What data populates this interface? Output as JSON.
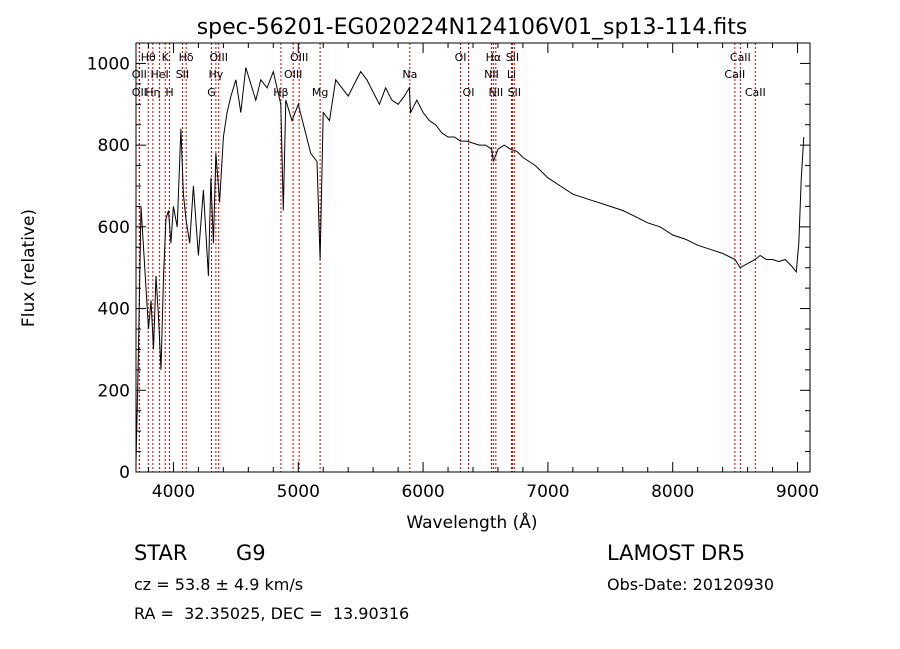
{
  "chart_data": {
    "type": "line",
    "title": "spec-56201-EG020224N124106V01_sp13-114.fits",
    "xlabel": "Wavelength (Å)",
    "ylabel": "Flux (relative)",
    "xlim": [
      3700,
      9100
    ],
    "ylim": [
      0,
      1050
    ],
    "x_ticks": [
      4000,
      5000,
      6000,
      7000,
      8000,
      9000
    ],
    "y_ticks": [
      0,
      200,
      400,
      600,
      800,
      1000
    ],
    "series": [
      {
        "x": [
          3700,
          3720,
          3740,
          3760,
          3780,
          3800,
          3820,
          3840,
          3860,
          3880,
          3900,
          3920,
          3940,
          3960,
          3980,
          4000,
          4030,
          4060,
          4080,
          4100,
          4130,
          4160,
          4200,
          4240,
          4280,
          4300,
          4320,
          4340,
          4370,
          4400,
          4430,
          4460,
          4500,
          4540,
          4580,
          4620,
          4660,
          4700,
          4750,
          4800,
          4860,
          4880,
          4900,
          4950,
          5000,
          5050,
          5100,
          5150,
          5175,
          5200,
          5250,
          5300,
          5350,
          5400,
          5450,
          5500,
          5550,
          5600,
          5650,
          5700,
          5750,
          5800,
          5850,
          5890,
          5900,
          5950,
          6000,
          6050,
          6100,
          6150,
          6200,
          6250,
          6300,
          6350,
          6400,
          6450,
          6500,
          6550,
          6563,
          6600,
          6650,
          6700,
          6750,
          6800,
          6900,
          7000,
          7100,
          7200,
          7300,
          7400,
          7500,
          7600,
          7700,
          7800,
          7900,
          8000,
          8100,
          8200,
          8300,
          8400,
          8500,
          8540,
          8600,
          8660,
          8700,
          8750,
          8800,
          8850,
          8900,
          8950,
          8990,
          9010,
          9030,
          9050
        ],
        "y": [
          20,
          300,
          650,
          550,
          450,
          350,
          420,
          300,
          480,
          380,
          250,
          480,
          620,
          640,
          560,
          650,
          600,
          840,
          680,
          620,
          560,
          700,
          530,
          690,
          480,
          720,
          560,
          780,
          660,
          820,
          880,
          920,
          960,
          880,
          990,
          950,
          910,
          960,
          940,
          980,
          900,
          640,
          910,
          860,
          900,
          840,
          780,
          760,
          520,
          880,
          860,
          960,
          940,
          920,
          950,
          980,
          960,
          930,
          900,
          940,
          910,
          900,
          920,
          940,
          880,
          910,
          880,
          860,
          850,
          830,
          820,
          820,
          810,
          810,
          805,
          800,
          800,
          790,
          760,
          790,
          800,
          790,
          785,
          770,
          750,
          720,
          700,
          680,
          670,
          660,
          650,
          640,
          625,
          610,
          600,
          580,
          570,
          555,
          545,
          535,
          520,
          500,
          510,
          520,
          530,
          520,
          520,
          515,
          520,
          505,
          490,
          560,
          720,
          820
        ]
      }
    ],
    "lines": [
      {
        "label": "Hθ",
        "x": 3798,
        "row": 0
      },
      {
        "label": "OII",
        "x": 3727,
        "row": 1
      },
      {
        "label": "OII",
        "x": 3727,
        "row": 2
      },
      {
        "label": "K",
        "x": 3934,
        "row": 0
      },
      {
        "label": "HeI",
        "x": 3889,
        "row": 1
      },
      {
        "label": "Hη",
        "x": 3835,
        "row": 2
      },
      {
        "label": "Hδ",
        "x": 4102,
        "row": 0
      },
      {
        "label": "SII",
        "x": 4072,
        "row": 1
      },
      {
        "label": "H",
        "x": 3969,
        "row": 2
      },
      {
        "label": "OIII",
        "x": 4363,
        "row": 0
      },
      {
        "label": "Hγ",
        "x": 4340,
        "row": 1
      },
      {
        "label": "G",
        "x": 4305,
        "row": 2
      },
      {
        "label": "OIII",
        "x": 5007,
        "row": 0
      },
      {
        "label": "OIII",
        "x": 4959,
        "row": 1
      },
      {
        "label": "Hβ",
        "x": 4861,
        "row": 2
      },
      {
        "label": "Mg",
        "x": 5175,
        "row": 2
      },
      {
        "label": "Na",
        "x": 5894,
        "row": 1
      },
      {
        "label": "OI",
        "x": 6300,
        "row": 0
      },
      {
        "label": "OI",
        "x": 6364,
        "row": 2
      },
      {
        "label": "Hα",
        "x": 6563,
        "row": 0
      },
      {
        "label": "NII",
        "x": 6548,
        "row": 1
      },
      {
        "label": "NII",
        "x": 6583,
        "row": 2
      },
      {
        "label": "SII",
        "x": 6716,
        "row": 0
      },
      {
        "label": "Li",
        "x": 6708,
        "row": 1
      },
      {
        "label": "SII",
        "x": 6731,
        "row": 2
      },
      {
        "label": "CaII",
        "x": 8542,
        "row": 0
      },
      {
        "label": "CaII",
        "x": 8498,
        "row": 1
      },
      {
        "label": "CaII",
        "x": 8662,
        "row": 2
      }
    ],
    "line_color": "#c00000",
    "grid": false
  },
  "info": {
    "class": "STAR",
    "subclass": "G9",
    "survey": "LAMOST DR5",
    "cz": "cz = 53.8 ± 4.9 km/s",
    "obs_date": "Obs-Date: 20120930",
    "coords": "RA =  32.35025, DEC =  13.90316"
  }
}
